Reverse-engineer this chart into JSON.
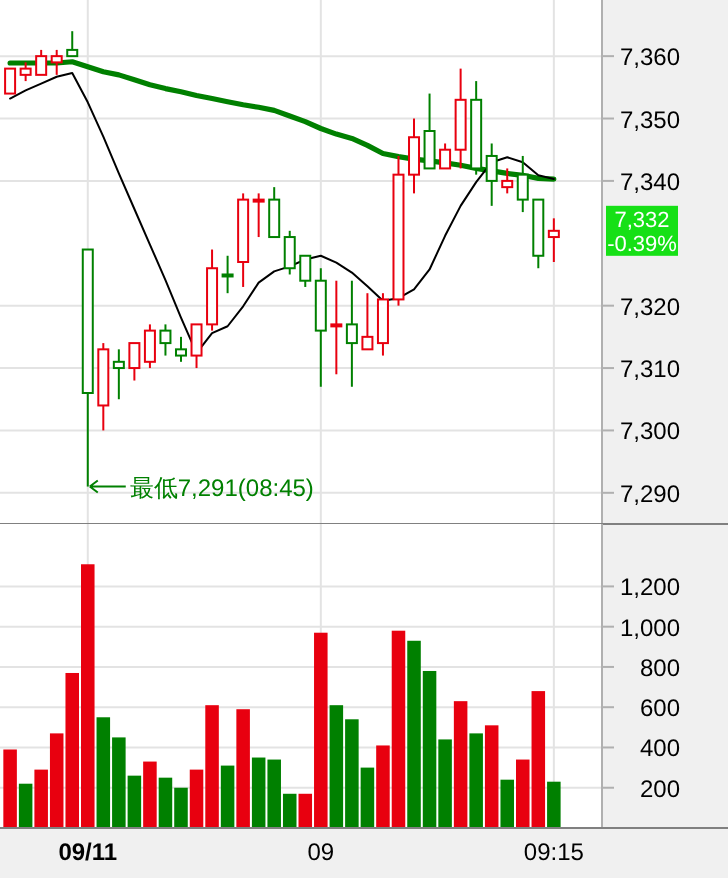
{
  "chart_data": [
    {
      "type": "candlestick",
      "categories": [
        null,
        null,
        null,
        null,
        null,
        "09/11",
        null,
        null,
        null,
        null,
        null,
        null,
        null,
        null,
        null,
        null,
        null,
        null,
        null,
        null,
        "09",
        null,
        null,
        null,
        null,
        null,
        null,
        null,
        null,
        null,
        null,
        null,
        null,
        null,
        null,
        "09:15"
      ],
      "ohlc": [
        [
          7354,
          7358,
          7354,
          7358
        ],
        [
          7357,
          7359,
          7356,
          7358
        ],
        [
          7357,
          7361,
          7357,
          7360
        ],
        [
          7359,
          7361,
          7357,
          7360
        ],
        [
          7361,
          7364,
          7360,
          7360
        ],
        [
          7329,
          7329,
          7291,
          7306
        ],
        [
          7304,
          7314,
          7300,
          7313
        ],
        [
          7311,
          7313,
          7305,
          7310
        ],
        [
          7310,
          7314,
          7308,
          7314
        ],
        [
          7311,
          7317,
          7310,
          7316
        ],
        [
          7316,
          7317,
          7312,
          7314
        ],
        [
          7313,
          7315,
          7311,
          7312
        ],
        [
          7312,
          7317,
          7310,
          7317
        ],
        [
          7317,
          7329,
          7316,
          7326
        ],
        [
          7325,
          7328,
          7322,
          7325
        ],
        [
          7327,
          7338,
          7323,
          7337
        ],
        [
          7337,
          7338,
          7331,
          7337
        ],
        [
          7337,
          7339,
          7331,
          7331
        ],
        [
          7331,
          7332,
          7325,
          7326
        ],
        [
          7328,
          7328,
          7323,
          7324
        ],
        [
          7324,
          7326,
          7307,
          7316
        ],
        [
          7317,
          7324,
          7309,
          7317
        ],
        [
          7317,
          7324,
          7307,
          7314
        ],
        [
          7313,
          7322,
          7313,
          7315
        ],
        [
          7314,
          7322,
          7312,
          7321
        ],
        [
          7321,
          7344,
          7320,
          7341
        ],
        [
          7341,
          7350,
          7338,
          7347
        ],
        [
          7348,
          7354,
          7342,
          7342
        ],
        [
          7342,
          7346,
          7342,
          7345
        ],
        [
          7345,
          7358,
          7342,
          7353
        ],
        [
          7353,
          7356,
          7341,
          7342
        ],
        [
          7344,
          7346,
          7336,
          7340
        ],
        [
          7339,
          7342,
          7338,
          7340
        ],
        [
          7341,
          7344,
          7335,
          7337
        ],
        [
          7337,
          7337,
          7326,
          7328
        ],
        [
          7331,
          7334,
          7327,
          7332
        ]
      ],
      "colors": [
        "#e8000f",
        "#e8000f",
        "#e8000f",
        "#e8000f",
        "#008000",
        "#008000",
        "#e8000f",
        "#008000",
        "#e8000f",
        "#e8000f",
        "#008000",
        "#008000",
        "#e8000f",
        "#e8000f",
        "#008000",
        "#e8000f",
        "#e8000f",
        "#008000",
        "#008000",
        "#008000",
        "#008000",
        "#e8000f",
        "#008000",
        "#e8000f",
        "#e8000f",
        "#e8000f",
        "#e8000f",
        "#008000",
        "#e8000f",
        "#e8000f",
        "#008000",
        "#008000",
        "#e8000f",
        "#008000",
        "#008000",
        "#e8000f"
      ],
      "series": [
        {
          "type": "line",
          "color": "#008000",
          "values": [
            7358.9,
            7358.9,
            7358.9,
            7358.9,
            7359.1,
            7358.3,
            7357.5,
            7357.0,
            7356.2,
            7355.4,
            7354.8,
            7354.3,
            7353.7,
            7353.2,
            7352.7,
            7352.2,
            7351.8,
            7351.3,
            7350.4,
            7349.5,
            7348.4,
            7347.5,
            7346.8,
            7345.7,
            7344.4,
            7343.9,
            7343.5,
            7343.2,
            7342.9,
            7342.5,
            7342.0,
            7341.6,
            7341.2,
            7340.9,
            7340.4,
            7340.3
          ]
        },
        {
          "type": "line",
          "color": "#000000",
          "values": [
            7353.2,
            7354.5,
            7355.6,
            7356.7,
            7357.3,
            7352.6,
            7347.1,
            7341.2,
            7335.5,
            7329.8,
            7324.1,
            7318.1,
            7312.4,
            7315.6,
            7316.7,
            7319.9,
            7323.7,
            7325.5,
            7326.3,
            7327.4,
            7328.0,
            7326.9,
            7325.3,
            7323.1,
            7320.8,
            7321.2,
            7322.6,
            7325.8,
            7331.2,
            7336.0,
            7339.8,
            7343.0,
            7343.8,
            7343.0,
            7340.9,
            7340.3
          ]
        }
      ],
      "ylim": [
        7285,
        7369
      ],
      "yticks": [
        {
          "value": 7290,
          "label": "7,290"
        },
        {
          "value": 7300,
          "label": "7,300"
        },
        {
          "value": 7310,
          "label": "7,310"
        },
        {
          "value": 7320,
          "label": "7,320"
        },
        {
          "value": 7340,
          "label": "7,340"
        },
        {
          "value": 7350,
          "label": "7,350"
        },
        {
          "value": 7360,
          "label": "7,360"
        }
      ],
      "annotations": [
        {
          "text": "最低7,291(08:45)",
          "x": "09/11",
          "y": 7291
        },
        "7,332\n-0.39%"
      ],
      "grid": true,
      "tick_labels": "y"
    },
    {
      "type": "bar",
      "categories": [
        null,
        null,
        null,
        null,
        null,
        "09/11",
        null,
        null,
        null,
        null,
        null,
        null,
        null,
        null,
        null,
        null,
        null,
        null,
        null,
        null,
        "09",
        null,
        null,
        null,
        null,
        null,
        null,
        null,
        null,
        null,
        null,
        null,
        null,
        null,
        null,
        "09:15"
      ],
      "values": [
        390,
        220,
        290,
        470,
        770,
        1310,
        550,
        450,
        260,
        330,
        250,
        200,
        290,
        610,
        310,
        590,
        350,
        340,
        170,
        170,
        970,
        610,
        540,
        300,
        410,
        980,
        930,
        780,
        440,
        630,
        470,
        510,
        240,
        340,
        680,
        230
      ],
      "colors": [
        "#e8000f",
        "#008000",
        "#e8000f",
        "#e8000f",
        "#e8000f",
        "#e8000f",
        "#008000",
        "#008000",
        "#008000",
        "#e8000f",
        "#008000",
        "#008000",
        "#e8000f",
        "#e8000f",
        "#008000",
        "#e8000f",
        "#008000",
        "#008000",
        "#008000",
        "#e8000f",
        "#e8000f",
        "#008000",
        "#008000",
        "#008000",
        "#e8000f",
        "#e8000f",
        "#008000",
        "#008000",
        "#008000",
        "#e8000f",
        "#008000",
        "#e8000f",
        "#008000",
        "#e8000f",
        "#e8000f",
        "#008000"
      ],
      "ylim": [
        0,
        1510
      ],
      "yticks": [
        {
          "value": 200,
          "label": "200"
        },
        {
          "value": 400,
          "label": "400"
        },
        {
          "value": 600,
          "label": "600"
        },
        {
          "value": 800,
          "label": "800"
        },
        {
          "value": 1000,
          "label": "1,000"
        },
        {
          "value": 1200,
          "label": "1,200"
        }
      ],
      "grid": true
    }
  ]
}
